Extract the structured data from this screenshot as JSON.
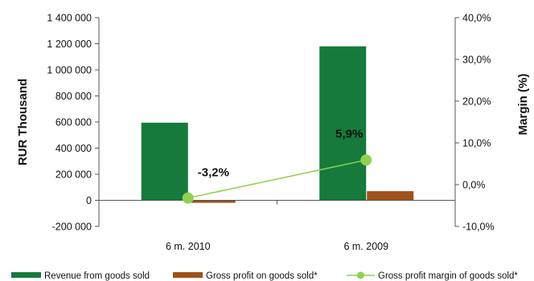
{
  "chart_data": {
    "type": "bar",
    "categories": [
      "6 m. 2010",
      "6 m. 2009"
    ],
    "series": [
      {
        "name": "Revenue from goods sold",
        "kind": "bar",
        "axis": "left",
        "color": "#157a3b",
        "values": [
          595000,
          1180000
        ]
      },
      {
        "name": "Gross profit on goods sold*",
        "kind": "bar",
        "axis": "left",
        "color": "#a0521a",
        "values": [
          -19000,
          70000
        ]
      },
      {
        "name": "Gross profit margin of goods sold*",
        "kind": "line",
        "axis": "right",
        "color": "#8fd14f",
        "values": [
          -3.2,
          5.9
        ],
        "labels": [
          "-3,2%",
          "5,9%"
        ]
      }
    ],
    "ylabel": "RUR Thousand",
    "y2label": "Margin (%)",
    "ylim": [
      -200000,
      1400000
    ],
    "y2lim": [
      -10,
      40
    ],
    "yticks": [
      -200000,
      0,
      200000,
      400000,
      600000,
      800000,
      1000000,
      1200000,
      1400000
    ],
    "ytick_labels": [
      "-200 000",
      "0",
      "200 000",
      "400 000",
      "600 000",
      "800 000",
      "1 000 000",
      "1 200 000",
      "1 400 000"
    ],
    "y2ticks": [
      -10,
      0,
      10,
      20,
      30,
      40
    ],
    "y2tick_labels": [
      "-10,0%",
      "0,0%",
      "10,0%",
      "20,0%",
      "30,0%",
      "40,0%"
    ],
    "grid": false,
    "legend_position": "bottom"
  }
}
